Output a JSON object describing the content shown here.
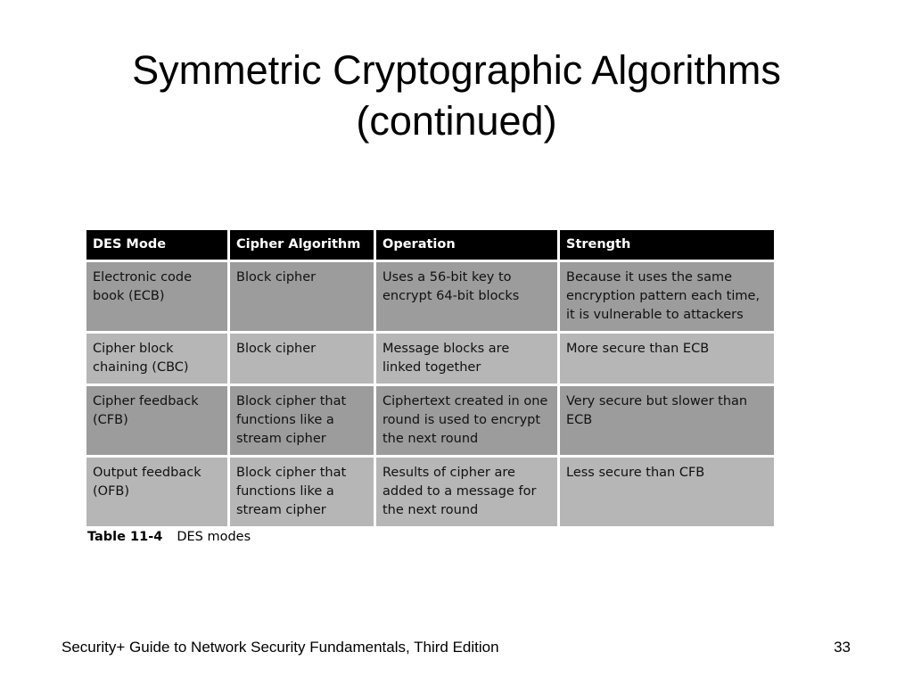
{
  "title_line1": "Symmetric Cryptographic Algorithms",
  "title_line2": "(continued)",
  "table": {
    "headers": [
      "DES Mode",
      "Cipher Algorithm",
      "Operation",
      "Strength"
    ],
    "rows": [
      [
        "Electronic code book (ECB)",
        "Block cipher",
        "Uses a 56-bit key to encrypt 64-bit blocks",
        "Because it uses the same encryption pattern each time, it is vulnerable to attackers"
      ],
      [
        "Cipher block chaining (CBC)",
        "Block cipher",
        "Message blocks are linked together",
        "More secure than ECB"
      ],
      [
        "Cipher feedback (CFB)",
        "Block cipher that functions like a stream cipher",
        "Ciphertext created in one round is used to encrypt the next round",
        "Very secure but slower than ECB"
      ],
      [
        "Output feedback (OFB)",
        "Block cipher that functions like a stream cipher",
        "Results of cipher are added to a message for the next round",
        "Less secure than CFB"
      ]
    ],
    "caption_label": "Table 11-4",
    "caption_text": "DES modes"
  },
  "footer": "Security+ Guide to Network Security Fundamentals, Third Edition",
  "page_number": "33"
}
